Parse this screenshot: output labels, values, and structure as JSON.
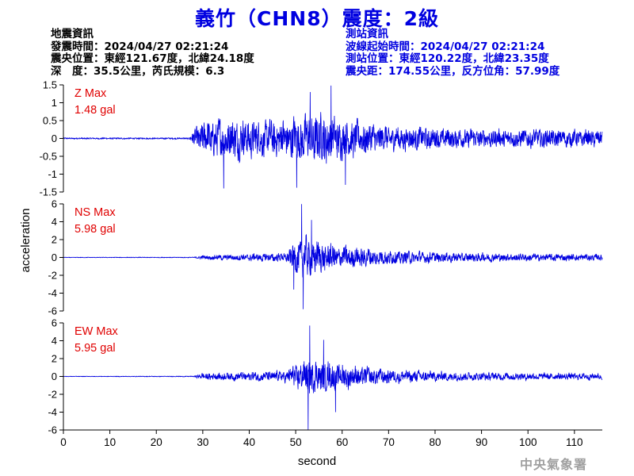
{
  "title": "義竹（CHN8）震度：2級",
  "quake_info": {
    "heading": "地震資訊",
    "time": "發震時間：2024/04/27 02:21:24",
    "epicenter": "震央位置：東經121.67度，北緯24.18度",
    "depth_magnitude": "深　度：35.5公里，芮氏規模：6.3"
  },
  "station_info": {
    "heading": "測站資訊",
    "wave_start": "波線起始時間：2024/04/27 02:21:24",
    "location": "測站位置：東經120.22度，北緯23.35度",
    "distance": "震央距：174.55公里，反方位角：57.99度"
  },
  "watermark": "中央氣象署",
  "colors": {
    "trace": "#0000e0",
    "max_label": "#e00000",
    "title": "#0000e0",
    "axis": "#000000"
  },
  "chart_data": {
    "type": "line",
    "xlabel": "second",
    "ylabel": "acceleration",
    "xlim": [
      0,
      116
    ],
    "xticks": [
      0,
      10,
      20,
      30,
      40,
      50,
      60,
      70,
      80,
      90,
      100,
      110
    ],
    "grid": false,
    "panels": [
      {
        "name": "Z",
        "max_label": "Z Max",
        "max_value": "1.48 gal",
        "ylim": [
          -1.5,
          1.5
        ],
        "yticks": [
          -1.5,
          -1,
          -0.5,
          0,
          0.5,
          1,
          1.5
        ],
        "ytick_labels": [
          "-1.5",
          "-1",
          "-0.5",
          "0",
          "0.5",
          "1",
          "1.5"
        ],
        "envelope": [
          [
            0,
            0.03
          ],
          [
            27,
            0.03
          ],
          [
            28,
            0.35
          ],
          [
            30,
            0.75
          ],
          [
            36,
            0.9
          ],
          [
            42,
            0.75
          ],
          [
            48,
            0.85
          ],
          [
            52,
            1.0
          ],
          [
            56,
            1.15
          ],
          [
            58,
            0.9
          ],
          [
            62,
            0.8
          ],
          [
            70,
            0.55
          ],
          [
            80,
            0.45
          ],
          [
            90,
            0.4
          ],
          [
            100,
            0.4
          ],
          [
            116,
            0.35
          ]
        ],
        "peaks": [
          [
            57.6,
            1.48
          ],
          [
            50.2,
            -1.38
          ],
          [
            34.5,
            -1.4
          ],
          [
            60.7,
            -1.3
          ],
          [
            53.1,
            1.3
          ]
        ]
      },
      {
        "name": "NS",
        "max_label": "NS Max",
        "max_value": "5.98 gal",
        "ylim": [
          -6,
          6
        ],
        "yticks": [
          -6,
          -4,
          -2,
          0,
          2,
          4,
          6
        ],
        "ytick_labels": [
          "-6",
          "-4",
          "-2",
          "0",
          "2",
          "4",
          "6"
        ],
        "envelope": [
          [
            0,
            0.04
          ],
          [
            28,
            0.06
          ],
          [
            30,
            0.35
          ],
          [
            40,
            0.6
          ],
          [
            48,
            0.8
          ],
          [
            50,
            3.0
          ],
          [
            52,
            3.6
          ],
          [
            56,
            2.6
          ],
          [
            60,
            2.0
          ],
          [
            66,
            1.6
          ],
          [
            72,
            1.2
          ],
          [
            80,
            0.9
          ],
          [
            90,
            0.75
          ],
          [
            100,
            0.65
          ],
          [
            116,
            0.55
          ]
        ],
        "peaks": [
          [
            51.3,
            5.98
          ],
          [
            51.6,
            -5.8
          ],
          [
            53.4,
            4.2
          ],
          [
            49.6,
            -3.6
          ]
        ]
      },
      {
        "name": "EW",
        "max_label": "EW Max",
        "max_value": "5.95 gal",
        "ylim": [
          -6,
          6
        ],
        "yticks": [
          -6,
          -4,
          -2,
          0,
          2,
          4,
          6
        ],
        "ytick_labels": [
          "-6",
          "-4",
          "-2",
          "0",
          "2",
          "4",
          "6"
        ],
        "envelope": [
          [
            0,
            0.04
          ],
          [
            28,
            0.06
          ],
          [
            30,
            0.6
          ],
          [
            40,
            0.75
          ],
          [
            48,
            1.0
          ],
          [
            50,
            2.2
          ],
          [
            53,
            3.0
          ],
          [
            56,
            2.6
          ],
          [
            60,
            2.2
          ],
          [
            66,
            1.5
          ],
          [
            72,
            1.1
          ],
          [
            80,
            0.9
          ],
          [
            90,
            0.7
          ],
          [
            100,
            0.6
          ],
          [
            116,
            0.55
          ]
        ],
        "peaks": [
          [
            52.7,
            -5.95
          ],
          [
            53.0,
            5.7
          ],
          [
            56.0,
            4.1
          ],
          [
            58.6,
            -4.0
          ]
        ]
      }
    ]
  }
}
